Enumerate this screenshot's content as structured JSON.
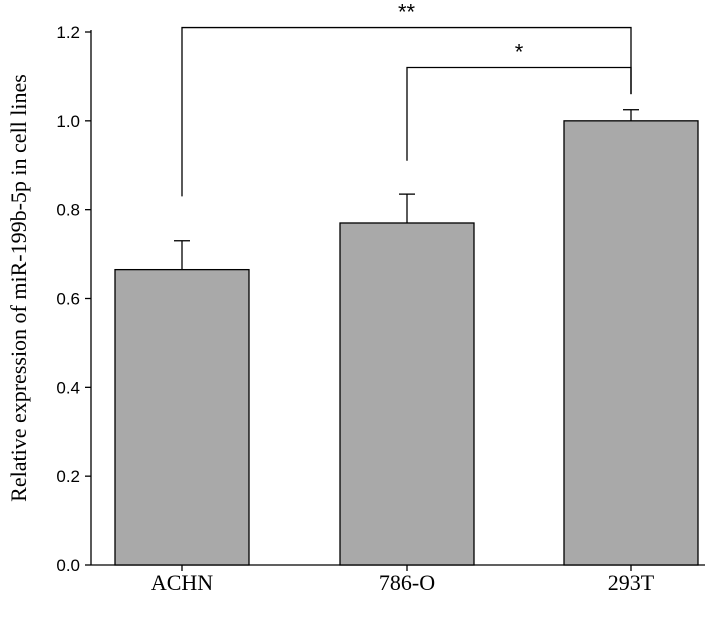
{
  "chart_data": {
    "type": "bar",
    "title": "",
    "xlabel": "",
    "ylabel": "Relative expression of miR-199b-5p in cell lines",
    "categories": [
      "ACHN",
      "786-O",
      "293T"
    ],
    "values": [
      0.665,
      0.77,
      1.0
    ],
    "errors": [
      0.065,
      0.065,
      0.025
    ],
    "ylim": [
      0,
      1.2
    ],
    "yticks": [
      0.0,
      0.2,
      0.4,
      0.6,
      0.8,
      1.0,
      1.2
    ],
    "ytick_labels": [
      "0.0",
      "0.2",
      "0.4",
      "0.6",
      "0.8",
      "1.0",
      "1.2"
    ],
    "bar_color": "#a9a9a9",
    "grid": false,
    "legend": "none",
    "significance": [
      {
        "from": "786-O",
        "to": "293T",
        "label": "*",
        "level": 1.12,
        "drop_from": 0.91,
        "drop_to": 1.06
      },
      {
        "from": "ACHN",
        "to": "293T",
        "label": "**",
        "level": 1.21,
        "drop_from": 0.83,
        "drop_to": 1.06
      }
    ]
  }
}
